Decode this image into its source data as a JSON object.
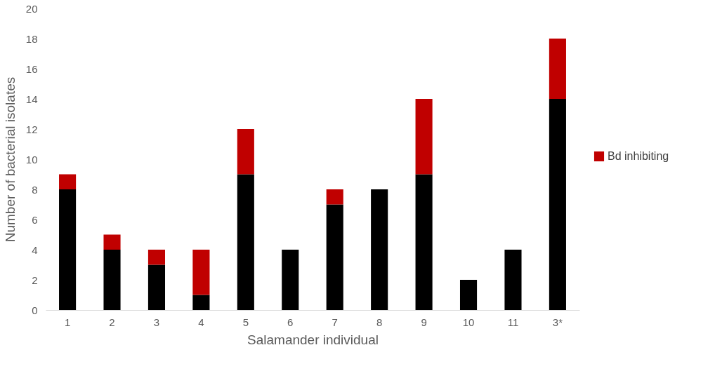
{
  "chart_data": {
    "type": "bar",
    "stacked": true,
    "xlabel": "Salamander individual",
    "ylabel": "Number of bacterial isolates",
    "categories": [
      "1",
      "2",
      "3",
      "4",
      "5",
      "6",
      "7",
      "8",
      "9",
      "10",
      "11",
      "3*"
    ],
    "series": [
      {
        "color": "#000000",
        "values": [
          8,
          4,
          3,
          1,
          9,
          4,
          7,
          8,
          9,
          2,
          4,
          14
        ]
      },
      {
        "name": "Bd inhibiting",
        "color": "#c00000",
        "values": [
          1,
          1,
          1,
          3,
          3,
          null,
          1,
          null,
          5,
          null,
          null,
          4
        ]
      }
    ],
    "ylim": [
      0,
      20
    ],
    "yticks": [
      0,
      2,
      4,
      6,
      8,
      10,
      12,
      14,
      16,
      18,
      20
    ],
    "grid": false,
    "legend": "right"
  }
}
